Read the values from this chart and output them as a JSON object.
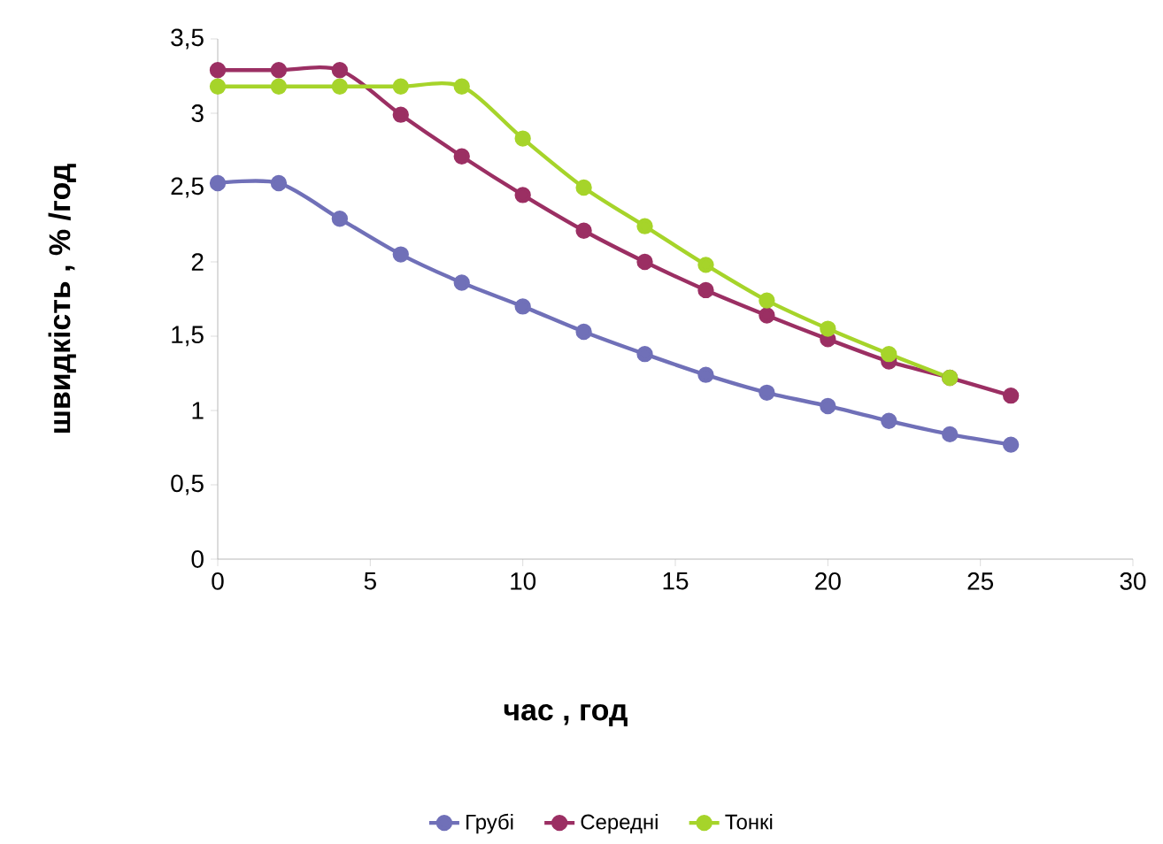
{
  "chart_data": {
    "type": "line",
    "xlabel": "час , год",
    "ylabel": "швидкість , % /год",
    "xlim": [
      0,
      30
    ],
    "xticks": [
      0,
      5,
      10,
      15,
      20,
      25,
      30
    ],
    "ylim": [
      0,
      3.5
    ],
    "yticks": [
      0,
      {
        "value": 0.5,
        "label": "0,5"
      },
      1,
      {
        "value": 1.5,
        "label": "1,5"
      },
      2,
      {
        "value": 2.5,
        "label": "2,5"
      },
      3,
      {
        "value": 3.5,
        "label": "3,5"
      }
    ],
    "marker": "circle",
    "line_style": "solid",
    "grid": false,
    "legend": "bottom",
    "series": [
      {
        "name": "Грубі",
        "color": "#7070b8",
        "x": [
          0,
          2,
          4,
          6,
          8,
          10,
          12,
          14,
          16,
          18,
          20,
          22,
          24,
          26
        ],
        "values": [
          2.53,
          2.53,
          2.29,
          2.05,
          1.86,
          1.7,
          1.53,
          1.38,
          1.24,
          1.12,
          1.03,
          0.93,
          0.84,
          0.77
        ]
      },
      {
        "name": "Середні",
        "color": "#9b2f63",
        "x": [
          0,
          2,
          4,
          6,
          8,
          10,
          12,
          14,
          16,
          18,
          20,
          22,
          24,
          26
        ],
        "values": [
          3.29,
          3.29,
          3.29,
          2.99,
          2.71,
          2.45,
          2.21,
          2.0,
          1.81,
          1.64,
          1.48,
          1.33,
          1.22,
          1.1
        ]
      },
      {
        "name": "Тонкі",
        "color": "#a6d42a",
        "x": [
          0,
          2,
          4,
          6,
          8,
          10,
          12,
          14,
          16,
          18,
          20,
          22,
          24
        ],
        "values": [
          3.18,
          3.18,
          3.18,
          3.18,
          3.18,
          2.83,
          2.5,
          2.24,
          1.98,
          1.74,
          1.55,
          1.38,
          1.22
        ]
      }
    ]
  }
}
